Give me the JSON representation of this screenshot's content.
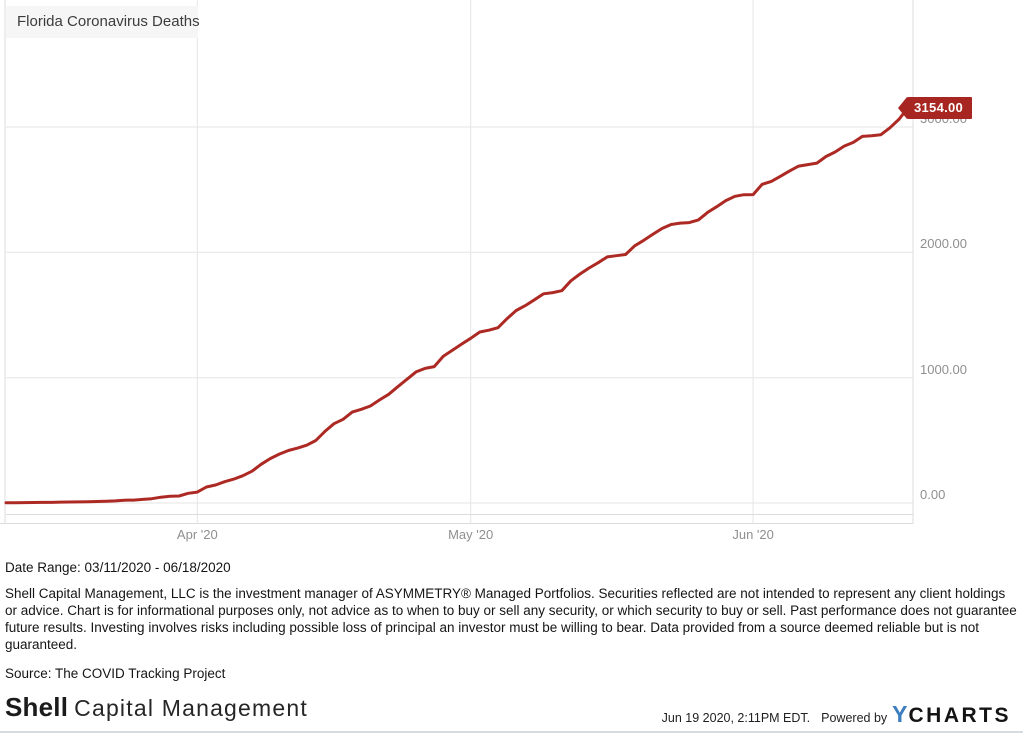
{
  "chart": {
    "title": "Florida Coronavirus Deaths",
    "last_value_label": "3154.00",
    "line_color": "#ad2a24",
    "tag_color": "#a82621"
  },
  "chart_data": {
    "type": "line",
    "title": "Florida Coronavirus Deaths",
    "series_name": "Florida Coronavirus Deaths",
    "grid": true,
    "legend": "none",
    "ylim": [
      0,
      3300
    ],
    "last_value": 3154.0,
    "line_color": "#ad2a24",
    "y_ticks": [
      {
        "label": "0.00",
        "value": 0
      },
      {
        "label": "1000.00",
        "value": 1000
      },
      {
        "label": "2000.00",
        "value": 2000
      },
      {
        "label": "3000.00",
        "value": 3000
      }
    ],
    "x_ticks": [
      {
        "label": "Apr '20",
        "day_index": 21
      },
      {
        "label": "May '20",
        "day_index": 51
      },
      {
        "label": "Jun '20",
        "day_index": 82
      }
    ],
    "x": [
      "2020-03-11",
      "2020-03-12",
      "2020-03-13",
      "2020-03-14",
      "2020-03-15",
      "2020-03-16",
      "2020-03-17",
      "2020-03-18",
      "2020-03-19",
      "2020-03-20",
      "2020-03-21",
      "2020-03-22",
      "2020-03-23",
      "2020-03-24",
      "2020-03-25",
      "2020-03-26",
      "2020-03-27",
      "2020-03-28",
      "2020-03-29",
      "2020-03-30",
      "2020-03-31",
      "2020-04-01",
      "2020-04-02",
      "2020-04-03",
      "2020-04-04",
      "2020-04-05",
      "2020-04-06",
      "2020-04-07",
      "2020-04-08",
      "2020-04-09",
      "2020-04-10",
      "2020-04-11",
      "2020-04-12",
      "2020-04-13",
      "2020-04-14",
      "2020-04-15",
      "2020-04-16",
      "2020-04-17",
      "2020-04-18",
      "2020-04-19",
      "2020-04-20",
      "2020-04-21",
      "2020-04-22",
      "2020-04-23",
      "2020-04-24",
      "2020-04-25",
      "2020-04-26",
      "2020-04-27",
      "2020-04-28",
      "2020-04-29",
      "2020-04-30",
      "2020-05-01",
      "2020-05-02",
      "2020-05-03",
      "2020-05-04",
      "2020-05-05",
      "2020-05-06",
      "2020-05-07",
      "2020-05-08",
      "2020-05-09",
      "2020-05-10",
      "2020-05-11",
      "2020-05-12",
      "2020-05-13",
      "2020-05-14",
      "2020-05-15",
      "2020-05-16",
      "2020-05-17",
      "2020-05-18",
      "2020-05-19",
      "2020-05-20",
      "2020-05-21",
      "2020-05-22",
      "2020-05-23",
      "2020-05-24",
      "2020-05-25",
      "2020-05-26",
      "2020-05-27",
      "2020-05-28",
      "2020-05-29",
      "2020-05-30",
      "2020-05-31",
      "2020-06-01",
      "2020-06-02",
      "2020-06-03",
      "2020-06-04",
      "2020-06-05",
      "2020-06-06",
      "2020-06-07",
      "2020-06-08",
      "2020-06-09",
      "2020-06-10",
      "2020-06-11",
      "2020-06-12",
      "2020-06-13",
      "2020-06-14",
      "2020-06-15",
      "2020-06-16",
      "2020-06-17",
      "2020-06-18"
    ],
    "values": [
      2,
      2,
      3,
      4,
      5,
      5,
      7,
      8,
      9,
      10,
      12,
      14,
      17,
      22,
      23,
      29,
      34,
      46,
      54,
      56,
      77,
      87,
      128,
      144,
      170,
      191,
      218,
      254,
      309,
      354,
      390,
      419,
      438,
      461,
      499,
      571,
      633,
      668,
      725,
      748,
      774,
      823,
      867,
      928,
      987,
      1046,
      1074,
      1088,
      1171,
      1218,
      1268,
      1314,
      1364,
      1379,
      1399,
      1471,
      1536,
      1575,
      1621,
      1669,
      1679,
      1694,
      1773,
      1827,
      1875,
      1917,
      1964,
      1973,
      1983,
      2052,
      2096,
      2144,
      2190,
      2222,
      2233,
      2237,
      2259,
      2319,
      2364,
      2413,
      2447,
      2460,
      2461,
      2543,
      2566,
      2607,
      2650,
      2688,
      2700,
      2712,
      2765,
      2801,
      2848,
      2877,
      2925,
      2931,
      2938,
      2993,
      3061,
      3154
    ]
  },
  "footer": {
    "date_range": "Date Range: 03/11/2020 - 06/18/2020",
    "disclaimer": "Shell Capital Management, LLC is the investment manager of ASYMMETRY® Managed Portfolios. Securities reflected are not intended to represent any client holdings or advice. Chart is for informational purposes only, not advice as to when to buy or sell any security, or which security to buy or sell. Past performance does not guarantee future results. Investing involves risks including possible loss of principal an investor must be willing to bear. Data provided from a source deemed reliable but is not guaranteed.",
    "source": "Source: The COVID Tracking Project",
    "brand_bold": "Shell",
    "brand_rest": "Capital Management",
    "timestamp": "Jun 19 2020, 2:11PM EDT.",
    "powered_by": "Powered by",
    "ycharts_y": "Y",
    "ycharts_rest": "CHARTS"
  }
}
